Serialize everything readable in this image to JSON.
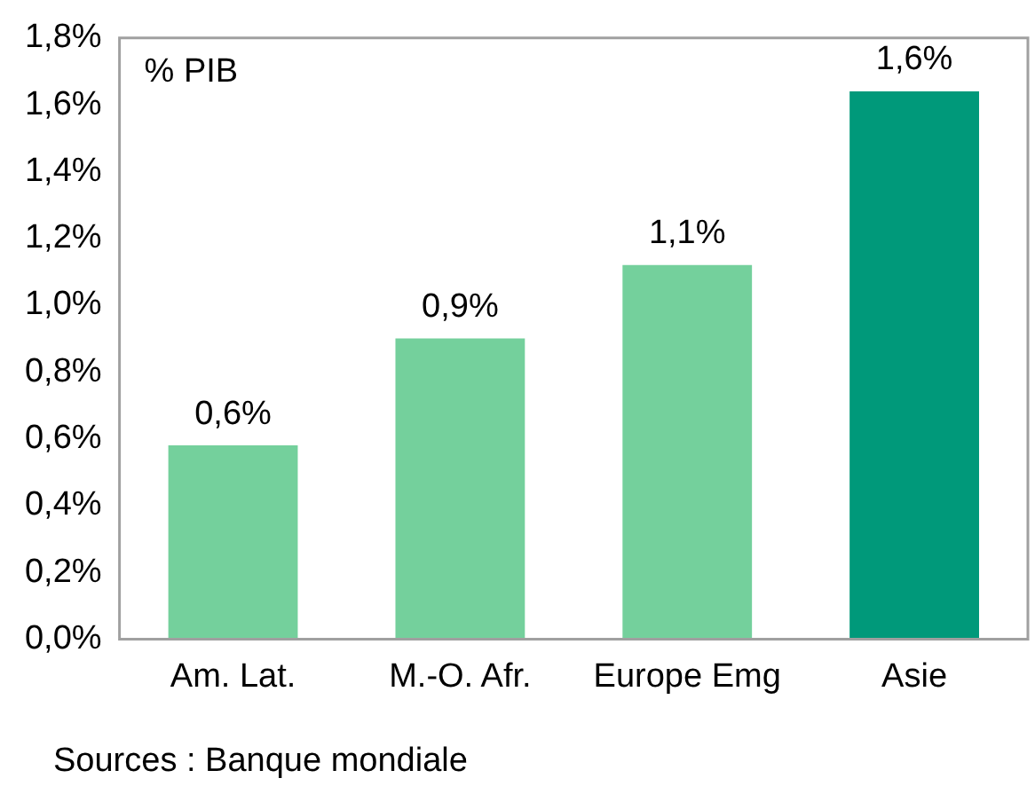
{
  "chart_data": {
    "type": "bar",
    "categories": [
      "Am. Lat.",
      "M.-O. Afr.",
      "Europe Emg",
      "Asie"
    ],
    "values": [
      0.58,
      0.9,
      1.12,
      1.64
    ],
    "colors": [
      "#74d09c",
      "#74d09c",
      "#74d09c",
      "#00997a"
    ],
    "value_labels": [
      "0,6%",
      "0,9%",
      "1,1%",
      "1,6%"
    ],
    "ylim": [
      0,
      1.8
    ],
    "yticks": [
      {
        "value": 0,
        "label": "0,0%"
      },
      {
        "value": 0.2,
        "label": "0,2%"
      },
      {
        "value": 0.4,
        "label": "0,4%"
      },
      {
        "value": 0.6,
        "label": "0,6%"
      },
      {
        "value": 0.8,
        "label": "0,8%"
      },
      {
        "value": 1.0,
        "label": "1,0%"
      },
      {
        "value": 1.2,
        "label": "1,2%"
      },
      {
        "value": 1.4,
        "label": "1,4%"
      },
      {
        "value": 1.6,
        "label": "1,6%"
      },
      {
        "value": 1.8,
        "label": "1,8%"
      }
    ],
    "grid": false,
    "legend": false,
    "annotations": [
      "% PIB",
      "Sources : Banque mondiale"
    ]
  }
}
